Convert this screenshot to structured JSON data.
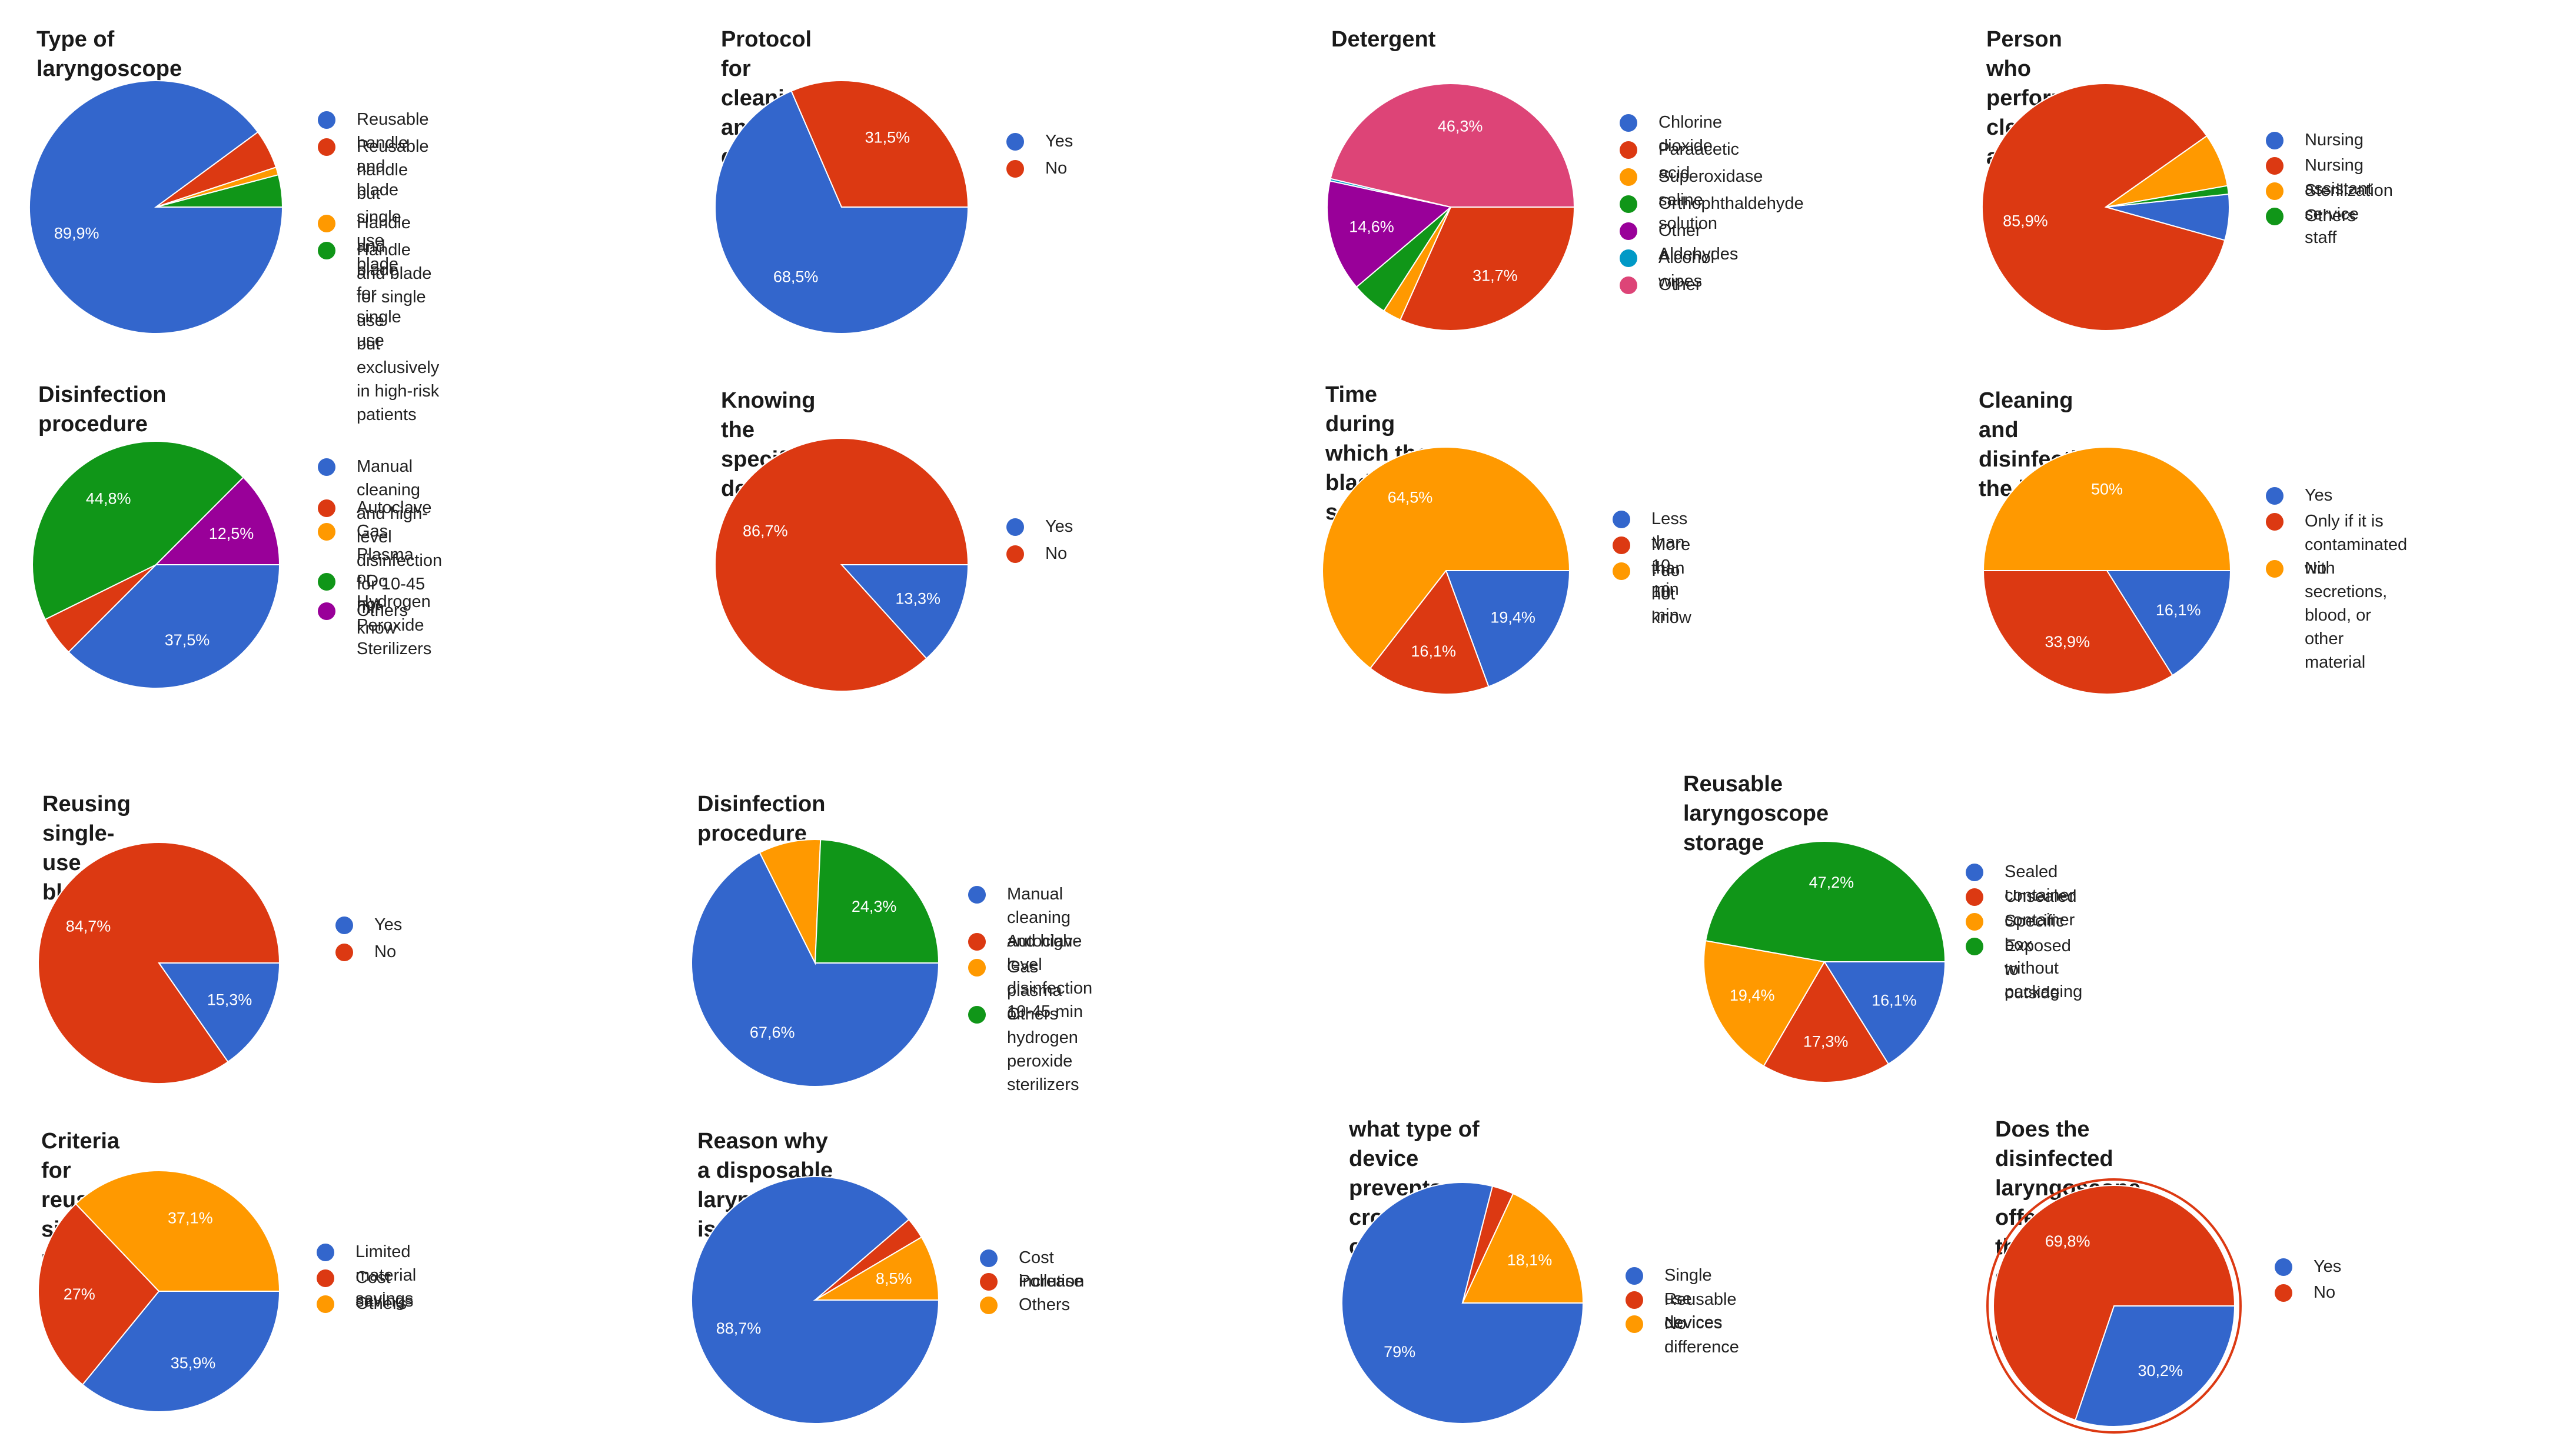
{
  "colors": {
    "blue": "#3366cc",
    "red": "#dc3912",
    "orange": "#ff9900",
    "green": "#109618",
    "purple": "#990099",
    "teal": "#0099c6",
    "pink": "#dd4477"
  },
  "chart_data": [
    {
      "type": "pie",
      "title": "Type of laryngoscope",
      "slices": [
        {
          "label": "Reusable handle and blade",
          "value": 89.9,
          "display": "89,9%",
          "color": "#3366cc"
        },
        {
          "label": "Reusable handle but single use blade",
          "value": 5.0,
          "display": "",
          "color": "#dc3912"
        },
        {
          "label": "Handle and blade for single use",
          "value": 1.0,
          "display": "",
          "color": "#ff9900"
        },
        {
          "label": "Handle and blade for single use\nbut exclusively in high-risk patients",
          "value": 4.1,
          "display": "",
          "color": "#109618"
        }
      ]
    },
    {
      "type": "pie",
      "title": "Protocol for cleaning and disinfecting",
      "slices": [
        {
          "label": "Yes",
          "value": 68.5,
          "display": "68,5%",
          "color": "#3366cc"
        },
        {
          "label": "No",
          "value": 31.5,
          "display": "31,5%",
          "color": "#dc3912"
        }
      ]
    },
    {
      "type": "pie",
      "title": "Detergent",
      "slices": [
        {
          "label": "Chlorine dioxide",
          "value": 0.0,
          "display": "",
          "color": "#3366cc"
        },
        {
          "label": "Paraacetic acid",
          "value": 31.7,
          "display": "31,7%",
          "color": "#dc3912"
        },
        {
          "label": "Superoxidase saline solution",
          "value": 2.4,
          "display": "",
          "color": "#ff9900"
        },
        {
          "label": "Orthophthaldehyde",
          "value": 4.7,
          "display": "",
          "color": "#109618"
        },
        {
          "label": "Other Aldehydes",
          "value": 14.6,
          "display": "14,6%",
          "color": "#990099"
        },
        {
          "label": "Alcohol wipes",
          "value": 0.3,
          "display": "",
          "color": "#0099c6"
        },
        {
          "label": "Other",
          "value": 46.3,
          "display": "46,3%",
          "color": "#dd4477"
        }
      ]
    },
    {
      "type": "pie",
      "title": "Person who performs cleaning and disinfection",
      "slices": [
        {
          "label": "Nursing",
          "value": 6.0,
          "display": "",
          "color": "#3366cc"
        },
        {
          "label": "Nursing assistant",
          "value": 85.9,
          "display": "85,9%",
          "color": "#dc3912"
        },
        {
          "label": "Sterilization service staff",
          "value": 7.0,
          "display": "",
          "color": "#ff9900"
        },
        {
          "label": "Others",
          "value": 1.1,
          "display": "",
          "color": "#109618"
        }
      ]
    },
    {
      "type": "pie",
      "title": "Disinfection procedure",
      "slices": [
        {
          "label": "Manual cleaning and high-level disinfection\nfor 10-45 min",
          "value": 37.5,
          "display": "37,5%",
          "color": "#3366cc"
        },
        {
          "label": "Autoclave",
          "value": 5.2,
          "display": "",
          "color": "#dc3912"
        },
        {
          "label": "Gas Plasma or Hydrogen\nPeroxide Sterilizers",
          "value": 0.0,
          "display": "",
          "color": "#ff9900"
        },
        {
          "label": "I Do not know",
          "value": 44.8,
          "display": "44,8%",
          "color": "#109618"
        },
        {
          "label": "Others",
          "value": 12.5,
          "display": "12,5%",
          "color": "#990099"
        }
      ]
    },
    {
      "type": "pie",
      "title": "Knowing the specific detergent",
      "slices": [
        {
          "label": "Yes",
          "value": 13.3,
          "display": "13,3%",
          "color": "#3366cc"
        },
        {
          "label": "No",
          "value": 86.7,
          "display": "86,7%",
          "color": "#dc3912"
        }
      ]
    },
    {
      "type": "pie",
      "title": "Time during which the blade is submerged",
      "slices": [
        {
          "label": "Less than 10 min",
          "value": 19.4,
          "display": "19,4%",
          "color": "#3366cc"
        },
        {
          "label": "More than 10 min",
          "value": 16.1,
          "display": "16,1%",
          "color": "#dc3912"
        },
        {
          "label": "I do not know",
          "value": 64.5,
          "display": "64,5%",
          "color": "#ff9900"
        }
      ]
    },
    {
      "type": "pie",
      "title": "Cleaning and disinfection the handle",
      "slices": [
        {
          "label": "Yes",
          "value": 16.1,
          "display": "16,1%",
          "color": "#3366cc"
        },
        {
          "label": "Only if it is contaminated with\nsecretions, blood, or other material",
          "value": 33.9,
          "display": "33,9%",
          "color": "#dc3912"
        },
        {
          "label": "No",
          "value": 50.0,
          "display": "50%",
          "color": "#ff9900"
        }
      ]
    },
    {
      "type": "pie",
      "title": "Reusing single-use blades",
      "slices": [
        {
          "label": "Yes",
          "value": 15.3,
          "display": "15,3%",
          "color": "#3366cc"
        },
        {
          "label": "No",
          "value": 84.7,
          "display": "84,7%",
          "color": "#dc3912"
        }
      ]
    },
    {
      "type": "pie",
      "title": "Disinfection procedure",
      "slices": [
        {
          "label": "Manual cleaning and high-level\ndisinfection 10-45 min",
          "value": 67.6,
          "display": "67,6%",
          "color": "#3366cc"
        },
        {
          "label": "Autoclave",
          "value": 0.0,
          "display": "",
          "color": "#dc3912"
        },
        {
          "label": "Gas plasma or hydrogen peroxide\nsterilizers",
          "value": 8.1,
          "display": "",
          "color": "#ff9900"
        },
        {
          "label": "Others",
          "value": 24.3,
          "display": "24,3%",
          "color": "#109618"
        }
      ]
    },
    {
      "type": "pie",
      "title": "Reusable laryngoscope storage",
      "slices": [
        {
          "label": "Sealed container",
          "value": 16.1,
          "display": "16,1%",
          "color": "#3366cc"
        },
        {
          "label": "Unsealed container",
          "value": 17.3,
          "display": "17,3%",
          "color": "#dc3912"
        },
        {
          "label": "Specific box without packaging",
          "value": 19.4,
          "display": "19,4%",
          "color": "#ff9900"
        },
        {
          "label": "Exposed to outside",
          "value": 47.2,
          "display": "47,2%",
          "color": "#109618"
        }
      ]
    },
    {
      "type": "pie",
      "title": "Criteria for reuse single-use blades",
      "slices": [
        {
          "label": "Limited material savings",
          "value": 35.9,
          "display": "35,9%",
          "color": "#3366cc"
        },
        {
          "label": "Cost savings",
          "value": 27.0,
          "display": "27%",
          "color": "#dc3912"
        },
        {
          "label": "Others",
          "value": 37.1,
          "display": "37,1%",
          "color": "#ff9900"
        }
      ]
    },
    {
      "type": "pie",
      "title": "Reason why a disposable laryngoscope is not used",
      "slices": [
        {
          "label": "Cost increase",
          "value": 88.7,
          "display": "88,7%",
          "color": "#3366cc"
        },
        {
          "label": "Pollution",
          "value": 2.8,
          "display": "",
          "color": "#dc3912"
        },
        {
          "label": "Others",
          "value": 8.5,
          "display": "8,5%",
          "color": "#ff9900"
        }
      ]
    },
    {
      "type": "pie",
      "title": "what type of device prevents\ncross-contamination infections?",
      "slices": [
        {
          "label": "Single use devices",
          "value": 79.0,
          "display": "79%",
          "color": "#3366cc"
        },
        {
          "label": "Reusable devices",
          "value": 2.9,
          "display": "",
          "color": "#dc3912"
        },
        {
          "label": "No difference",
          "value": 18.1,
          "display": "18,1%",
          "color": "#ff9900"
        }
      ]
    },
    {
      "type": "pie",
      "title": "Does the disinfected laryngoscope offer\nthe same guarantee as a single-use one?",
      "slices": [
        {
          "label": "Yes",
          "value": 30.2,
          "display": "30,2%",
          "color": "#3366cc"
        },
        {
          "label": "No",
          "value": 69.8,
          "display": "69,8%",
          "color": "#dc3912"
        }
      ]
    }
  ]
}
